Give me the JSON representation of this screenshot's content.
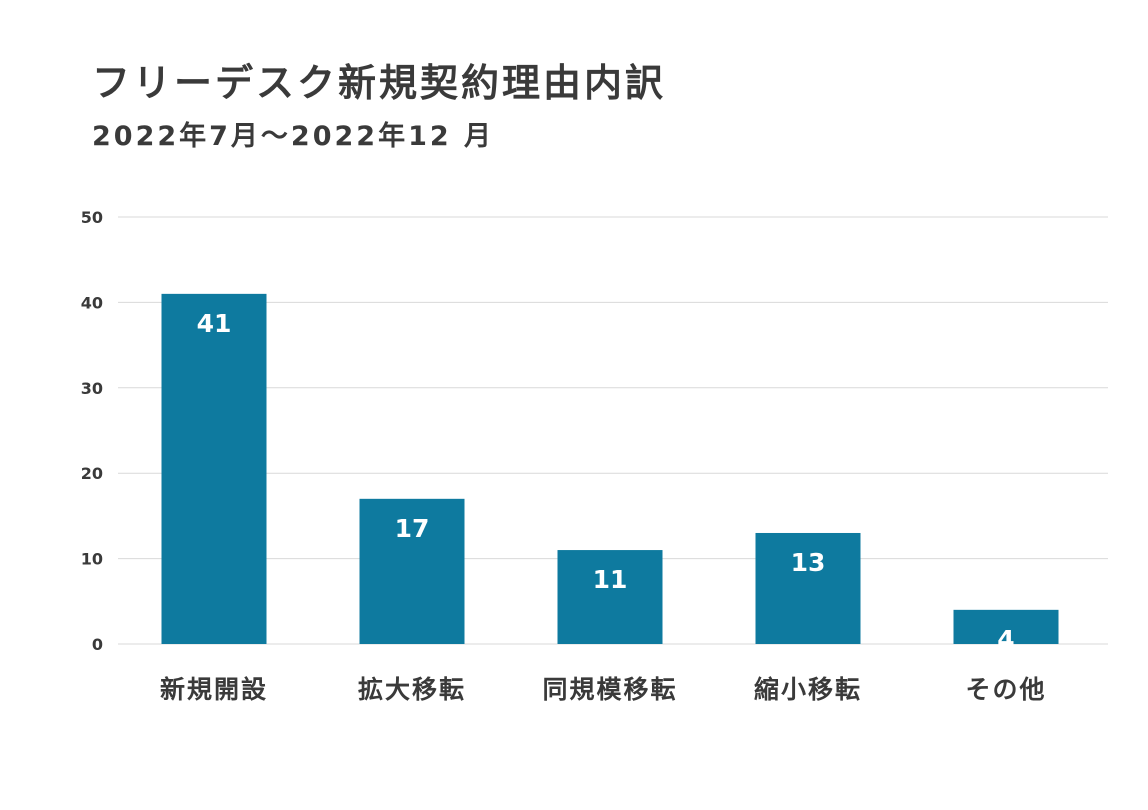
{
  "title": "フリーデスク新規契約理由内訳",
  "subtitle": "2022年7月～2022年12 月",
  "colors": {
    "bar": "#0e7a9f",
    "grid": "#d9d9d9",
    "text": "#3a3a3a",
    "value_label": "#ffffff"
  },
  "chart_data": {
    "type": "bar",
    "categories": [
      "新規開設",
      "拡大移転",
      "同規模移転",
      "縮小移転",
      "その他"
    ],
    "values": [
      41,
      17,
      11,
      13,
      4
    ],
    "ylim": [
      0,
      50
    ],
    "yticks": [
      "0",
      "10",
      "20",
      "30",
      "40",
      "50"
    ],
    "xlabel": "",
    "ylabel": "",
    "grid": true,
    "data_labels": [
      "41",
      "17",
      "11",
      "13",
      "4"
    ]
  }
}
